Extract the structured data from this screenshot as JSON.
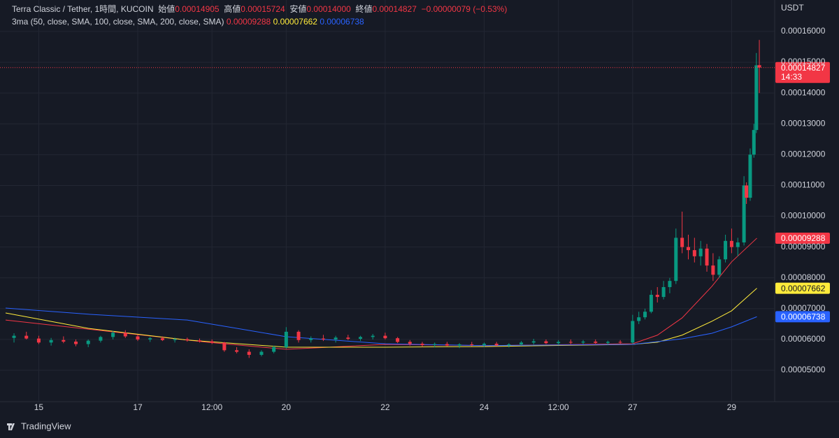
{
  "chart_data": {
    "type": "candlestick",
    "title": "Terra Classic / Tether, 1時間, KUCOIN",
    "legend_labels": {
      "open": "始値",
      "high": "高値",
      "low": "安値",
      "close": "終値"
    },
    "last_bar": {
      "x": 29.56,
      "open": {
        "value": 0.00014905,
        "label": "0.00014905"
      },
      "high": {
        "value": 0.00015724,
        "label": "0.00015724"
      },
      "low": {
        "value": 0.00014,
        "label": "0.00014000"
      },
      "close": {
        "value": 0.00014827,
        "label": "0.00014827"
      }
    },
    "change": {
      "value": -7.9e-07,
      "label": "−0.00000079"
    },
    "change_pct": {
      "value": -0.53,
      "label": "(−0.53%)"
    },
    "countdown": "14:33",
    "unit": "USDT",
    "brand": "TradingView",
    "up_color": "#089981",
    "down_color": "#f23645",
    "x": [
      14.5,
      14.75,
      15,
      15.25,
      15.5,
      15.75,
      16,
      16.25,
      16.5,
      16.75,
      17,
      17.25,
      17.5,
      17.75,
      18,
      18.25,
      18.5,
      18.75,
      19,
      19.25,
      19.5,
      19.75,
      20,
      20.25,
      20.5,
      20.75,
      21,
      21.25,
      21.5,
      21.75,
      22,
      22.25,
      22.5,
      22.75,
      23,
      23.25,
      23.5,
      23.75,
      24,
      24.25,
      24.5,
      24.75,
      25,
      25.25,
      25.5,
      25.75,
      26,
      26.25,
      26.5,
      26.75,
      27,
      27.125,
      27.25,
      27.375,
      27.5,
      27.625,
      27.75,
      27.875,
      28,
      28.125,
      28.25,
      28.375,
      28.5,
      28.625,
      28.75,
      28.875,
      29,
      29.125,
      29.25,
      29.3,
      29.375,
      29.45,
      29.5
    ],
    "open": [
      6.05e-05,
      6.12e-05,
      6.03e-05,
      5.9e-05,
      5.98e-05,
      5.93e-05,
      5.85e-05,
      5.96e-05,
      6.08e-05,
      6.22e-05,
      6.1e-05,
      6e-05,
      6.04e-05,
      5.98e-05,
      6.01e-05,
      5.97e-05,
      5.94e-05,
      5.9e-05,
      5.65e-05,
      5.6e-05,
      5.5e-05,
      5.6e-05,
      5.75e-05,
      6.25e-05,
      5.98e-05,
      6.03e-05,
      6e-05,
      6.06e-05,
      6.02e-05,
      6.08e-05,
      6.12e-05,
      6.04e-05,
      5.92e-05,
      5.86e-05,
      5.82e-05,
      5.85e-05,
      5.8e-05,
      5.84e-05,
      5.82e-05,
      5.86e-05,
      5.81e-05,
      5.84e-05,
      5.9e-05,
      5.94e-05,
      5.88e-05,
      5.92e-05,
      5.9e-05,
      5.93e-05,
      5.89e-05,
      5.92e-05,
      5.9e-05,
      6.6e-05,
      6.72e-05,
      6.9e-05,
      7.45e-05,
      7.38e-05,
      7.7e-05,
      7.9e-05,
      9.3e-05,
      9e-05,
      8.9e-05,
      8.7e-05,
      8.95e-05,
      8.4e-05,
      8.1e-05,
      8.6e-05,
      9.2e-05,
      9e-05,
      9.15e-05,
      0.00011,
      0.000106,
      0.00012,
      0.000128
    ],
    "high": [
      6.2e-05,
      6.25e-05,
      6.12e-05,
      6.05e-05,
      6.1e-05,
      6e-05,
      6e-05,
      6.12e-05,
      6.28e-05,
      6.3e-05,
      6.15e-05,
      6.08e-05,
      6.1e-05,
      6.06e-05,
      6.06e-05,
      6.03e-05,
      6e-05,
      5.92e-05,
      5.75e-05,
      5.68e-05,
      5.65e-05,
      5.8e-05,
      6.4e-05,
      6.3e-05,
      6.1e-05,
      6.15e-05,
      6.12e-05,
      6.15e-05,
      6.12e-05,
      6.18e-05,
      6.22e-05,
      6.08e-05,
      5.98e-05,
      5.92e-05,
      5.9e-05,
      5.92e-05,
      5.88e-05,
      5.92e-05,
      5.9e-05,
      5.92e-05,
      5.88e-05,
      5.95e-05,
      6.02e-05,
      6e-05,
      5.98e-05,
      6e-05,
      5.98e-05,
      6e-05,
      5.96e-05,
      5.98e-05,
      6.8e-05,
      6.9e-05,
      7e-05,
      7.6e-05,
      7.7e-05,
      7.9e-05,
      8e-05,
      9.6e-05,
      0.0001015,
      9.4e-05,
      9.3e-05,
      9.2e-05,
      9.1e-05,
      8.8e-05,
      8.7e-05,
      9.4e-05,
      9.6e-05,
      9.3e-05,
      0.000113,
      0.000111,
      0.000122,
      0.00013,
      0.000153
    ],
    "low": [
      5.9e-05,
      6e-05,
      5.85e-05,
      5.8e-05,
      5.88e-05,
      5.78e-05,
      5.75e-05,
      5.9e-05,
      6e-05,
      6.05e-05,
      5.95e-05,
      5.92e-05,
      5.95e-05,
      5.9e-05,
      5.93e-05,
      5.9e-05,
      5.85e-05,
      5.6e-05,
      5.55e-05,
      5.4e-05,
      5.45e-05,
      5.55e-05,
      5.7e-05,
      5.9e-05,
      5.9e-05,
      5.95e-05,
      5.9e-05,
      5.98e-05,
      5.95e-05,
      6e-05,
      6e-05,
      5.88e-05,
      5.8e-05,
      5.76e-05,
      5.74e-05,
      5.78e-05,
      5.72e-05,
      5.78e-05,
      5.75e-05,
      5.78e-05,
      5.74e-05,
      5.8e-05,
      5.84e-05,
      5.85e-05,
      5.82e-05,
      5.85e-05,
      5.84e-05,
      5.86e-05,
      5.83e-05,
      5.85e-05,
      5.85e-05,
      6.5e-05,
      6.65e-05,
      6.85e-05,
      7.2e-05,
      7.3e-05,
      7.5e-05,
      7.8e-05,
      8.8e-05,
      8.6e-05,
      8.5e-05,
      8.4e-05,
      8.2e-05,
      7.9e-05,
      8e-05,
      8.5e-05,
      8.8e-05,
      8.7e-05,
      9.05e-05,
      0.000104,
      0.000105,
      0.000119,
      0.000127
    ],
    "close": [
      6.12e-05,
      6.03e-05,
      5.9e-05,
      5.98e-05,
      5.93e-05,
      5.85e-05,
      5.96e-05,
      6.08e-05,
      6.22e-05,
      6.1e-05,
      6e-05,
      6.04e-05,
      5.98e-05,
      6.01e-05,
      5.97e-05,
      5.94e-05,
      5.9e-05,
      5.65e-05,
      5.6e-05,
      5.5e-05,
      5.6e-05,
      5.75e-05,
      6.25e-05,
      5.98e-05,
      6.03e-05,
      6e-05,
      6.06e-05,
      6.02e-05,
      6.08e-05,
      6.12e-05,
      6.04e-05,
      5.92e-05,
      5.86e-05,
      5.82e-05,
      5.85e-05,
      5.8e-05,
      5.84e-05,
      5.82e-05,
      5.86e-05,
      5.81e-05,
      5.84e-05,
      5.9e-05,
      5.94e-05,
      5.88e-05,
      5.92e-05,
      5.9e-05,
      5.93e-05,
      5.89e-05,
      5.92e-05,
      5.9e-05,
      6.6e-05,
      6.72e-05,
      6.9e-05,
      7.45e-05,
      7.38e-05,
      7.7e-05,
      7.9e-05,
      9.3e-05,
      9e-05,
      8.9e-05,
      8.7e-05,
      8.95e-05,
      8.4e-05,
      8.1e-05,
      8.6e-05,
      9.2e-05,
      9e-05,
      9.15e-05,
      0.00011,
      0.000106,
      0.00012,
      0.000128,
      0.000149
    ],
    "indicator": "3ma (50, close, SMA, 100, close, SMA, 200, close, SMA)",
    "series": [
      {
        "color": "#f23645",
        "x": [
          14.33,
          18.4,
          20,
          22,
          24.1,
          27,
          27.5,
          28,
          28.6,
          29
        ],
        "values": [
          6.63e-05,
          5.91e-05,
          5.68e-05,
          5.84e-05,
          5.8e-05,
          5.86e-05,
          6.14e-05,
          6.7e-05,
          7.72e-05,
          8.52e-05
        ],
        "last_x": 29.51,
        "last_value": {
          "value": 9.288e-05,
          "label": "0.00009288"
        }
      },
      {
        "color": "#ffeb3b",
        "x": [
          14.33,
          16,
          18,
          20,
          22,
          24,
          27,
          27.5,
          28,
          28.6,
          29
        ],
        "values": [
          6.86e-05,
          6.36e-05,
          5.98e-05,
          5.75e-05,
          5.75e-05,
          5.77e-05,
          5.84e-05,
          5.91e-05,
          6.14e-05,
          6.59e-05,
          6.93e-05
        ],
        "last_x": 29.51,
        "last_value": {
          "value": 7.662e-05,
          "label": "0.00007662"
        }
      },
      {
        "color": "#2962ff",
        "x": [
          14.33,
          16,
          18,
          19,
          20,
          22,
          24,
          27,
          28,
          28.6,
          29
        ],
        "values": [
          7.02e-05,
          6.82e-05,
          6.63e-05,
          6.36e-05,
          6.09e-05,
          5.86e-05,
          5.8e-05,
          5.84e-05,
          6.02e-05,
          6.2e-05,
          6.41e-05
        ],
        "last_x": 29.51,
        "last_value": {
          "value": 6.738e-05,
          "label": "0.00006738"
        }
      }
    ],
    "xlim": [
      14.33,
      29.87
    ],
    "ylim": [
      3.98e-05,
      0.0001702
    ],
    "xticks": [
      {
        "value": 15,
        "label": "15"
      },
      {
        "value": 17,
        "label": "17"
      },
      {
        "value": 18.5,
        "label": "12:00"
      },
      {
        "value": 20,
        "label": "20"
      },
      {
        "value": 22,
        "label": "22"
      },
      {
        "value": 24,
        "label": "24"
      },
      {
        "value": 25.5,
        "label": "12:00"
      },
      {
        "value": 27,
        "label": "27"
      },
      {
        "value": 29,
        "label": "29"
      }
    ],
    "yticks": [
      {
        "value": 5e-05,
        "label": "0.00005000"
      },
      {
        "value": 6e-05,
        "label": "0.00006000"
      },
      {
        "value": 7e-05,
        "label": "0.00007000"
      },
      {
        "value": 8e-05,
        "label": "0.00008000"
      },
      {
        "value": 9e-05,
        "label": "0.00009000"
      },
      {
        "value": 0.0001,
        "label": "0.00010000"
      },
      {
        "value": 0.00011,
        "label": "0.00011000"
      },
      {
        "value": 0.00012,
        "label": "0.00012000"
      },
      {
        "value": 0.00013,
        "label": "0.00013000"
      },
      {
        "value": 0.00014,
        "label": "0.00014000"
      },
      {
        "value": 0.00015,
        "label": "0.00015000"
      },
      {
        "value": 0.00016,
        "label": "0.00016000"
      }
    ],
    "grid": true
  }
}
